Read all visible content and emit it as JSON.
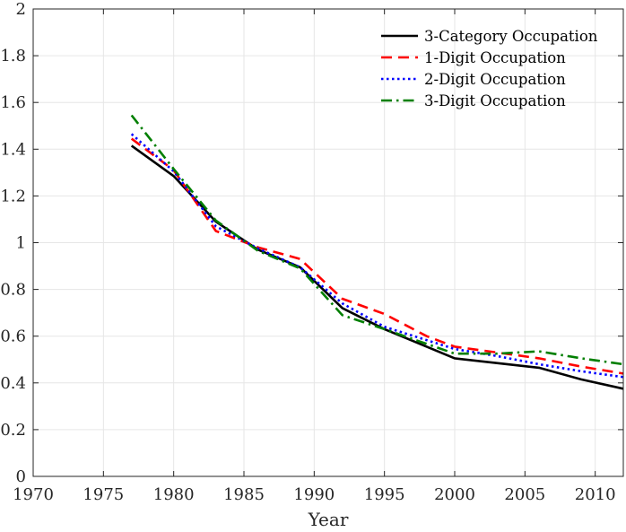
{
  "chart_data": {
    "type": "line",
    "title": "",
    "xlabel": "Year",
    "ylabel": "",
    "xlim": [
      1970,
      2012
    ],
    "ylim": [
      0,
      2
    ],
    "xticks": [
      "1970",
      "1975",
      "1980",
      "1985",
      "1990",
      "1995",
      "2000",
      "2005",
      "2010"
    ],
    "yticks": [
      "0",
      "0.2",
      "0.4",
      "0.6",
      "0.8",
      "1",
      "1.2",
      "1.4",
      "1.6",
      "1.8",
      "2"
    ],
    "grid": true,
    "legend_position": "top-right",
    "series": [
      {
        "name": "3-Category Occupation",
        "color": "#000000",
        "style": "solid",
        "x": [
          1977,
          1980,
          1983,
          1986,
          1989,
          1992,
          1995,
          2000,
          2003,
          2006,
          2009,
          2012
        ],
        "y": [
          1.415,
          1.285,
          1.09,
          0.97,
          0.895,
          0.72,
          0.63,
          0.505,
          0.485,
          0.465,
          0.415,
          0.375
        ]
      },
      {
        "name": "1-Digit Occupation",
        "color": "#ff0000",
        "style": "dashed",
        "x": [
          1977,
          1980,
          1983,
          1986,
          1989,
          1992,
          1995,
          1998,
          2000,
          2003,
          2006,
          2009,
          2012
        ],
        "y": [
          1.445,
          1.31,
          1.05,
          0.98,
          0.93,
          0.76,
          0.695,
          0.6,
          0.555,
          0.53,
          0.505,
          0.47,
          0.44
        ]
      },
      {
        "name": "2-Digit Occupation",
        "color": "#0000ff",
        "style": "dotted",
        "x": [
          1977,
          1980,
          1983,
          1986,
          1989,
          1992,
          1995,
          2000,
          2003,
          2006,
          2009,
          2012
        ],
        "y": [
          1.465,
          1.305,
          1.07,
          0.975,
          0.895,
          0.74,
          0.64,
          0.545,
          0.515,
          0.48,
          0.45,
          0.425
        ]
      },
      {
        "name": "3-Digit Occupation",
        "color": "#007f00",
        "style": "dashdot",
        "x": [
          1977,
          1980,
          1983,
          1986,
          1989,
          1992,
          1995,
          2000,
          2003,
          2006,
          2009,
          2012
        ],
        "y": [
          1.545,
          1.315,
          1.095,
          0.965,
          0.89,
          0.69,
          0.63,
          0.525,
          0.525,
          0.535,
          0.505,
          0.48
        ]
      }
    ]
  }
}
